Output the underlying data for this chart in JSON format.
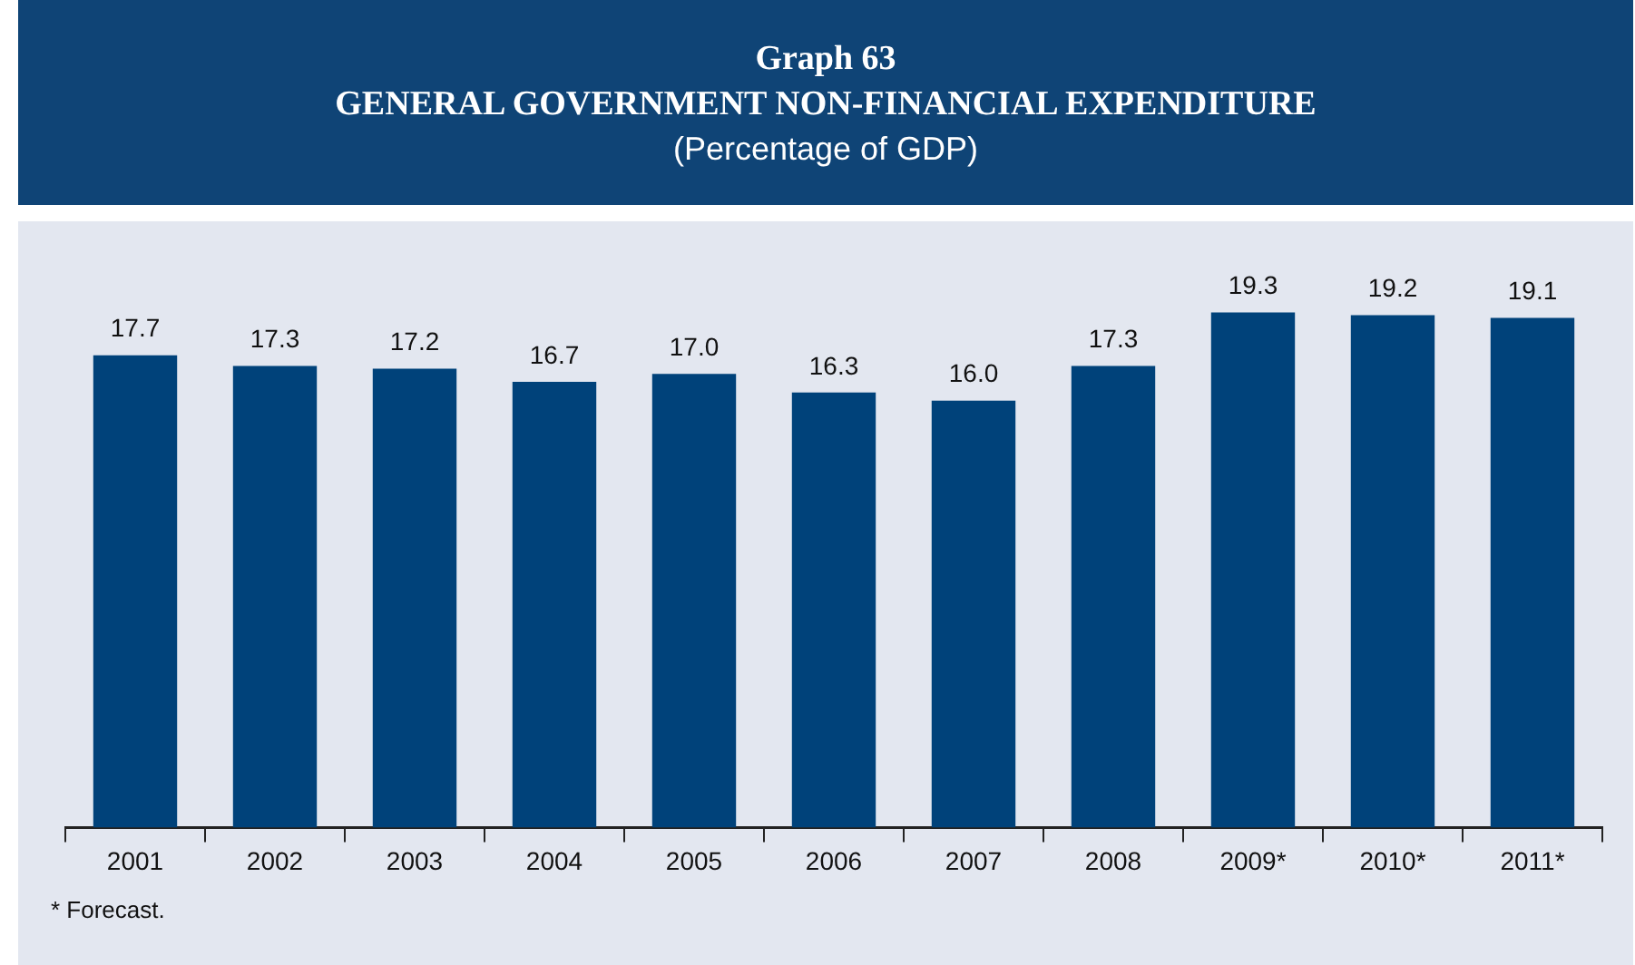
{
  "chart_data": {
    "type": "bar",
    "title": "Graph 63\nGENERAL GOVERNMENT NON-FINANCIAL EXPENDITURE",
    "subtitle": "(Percentage of GDP)",
    "categories": [
      "2001",
      "2002",
      "2003",
      "2004",
      "2005",
      "2006",
      "2007",
      "2008",
      "2009*",
      "2010*",
      "2011*"
    ],
    "values": [
      17.7,
      17.3,
      17.2,
      16.7,
      17.0,
      16.3,
      16.0,
      17.3,
      19.3,
      19.2,
      19.1
    ],
    "value_labels": [
      "17.7",
      "17.3",
      "17.2",
      "16.7",
      "17.0",
      "16.3",
      "16.0",
      "17.3",
      "19.3",
      "19.2",
      "19.1"
    ],
    "color": "#00427a",
    "relative": false,
    "grid": false,
    "legend": false,
    "annotations": [
      "*   Forecast."
    ]
  }
}
